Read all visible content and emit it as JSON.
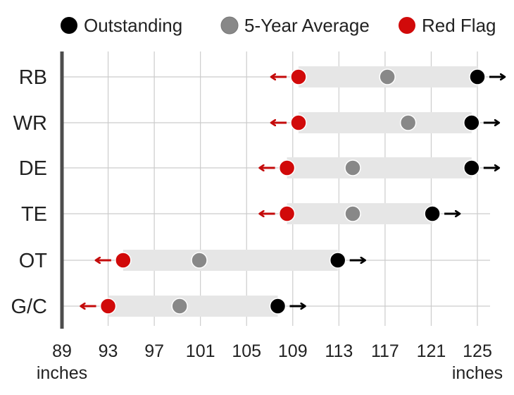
{
  "chart_data": {
    "type": "range-dot",
    "title": "",
    "xlabel": "",
    "x_unit_label": "inches",
    "xlim": [
      89,
      126
    ],
    "x_ticks": [
      89,
      93,
      97,
      101,
      105,
      109,
      113,
      117,
      121,
      125
    ],
    "grid": true,
    "legend_position": "top",
    "legend": [
      {
        "name": "Outstanding",
        "key": "outstanding",
        "color": "#000000"
      },
      {
        "name": "5-Year Average",
        "key": "average",
        "color": "#888888"
      },
      {
        "name": "Red Flag",
        "key": "red_flag",
        "color": "#d10a0a"
      }
    ],
    "categories": [
      "RB",
      "WR",
      "DE",
      "TE",
      "OT",
      "G/C"
    ],
    "series": [
      {
        "name": "Red Flag",
        "values": [
          109.5,
          109.5,
          108.5,
          108.5,
          94.3,
          93.0
        ]
      },
      {
        "name": "5-Year Average",
        "values": [
          117.2,
          119.0,
          114.2,
          114.2,
          100.9,
          99.2
        ]
      },
      {
        "name": "Outstanding",
        "values": [
          125.0,
          124.5,
          124.5,
          121.1,
          112.9,
          107.7
        ]
      }
    ]
  }
}
